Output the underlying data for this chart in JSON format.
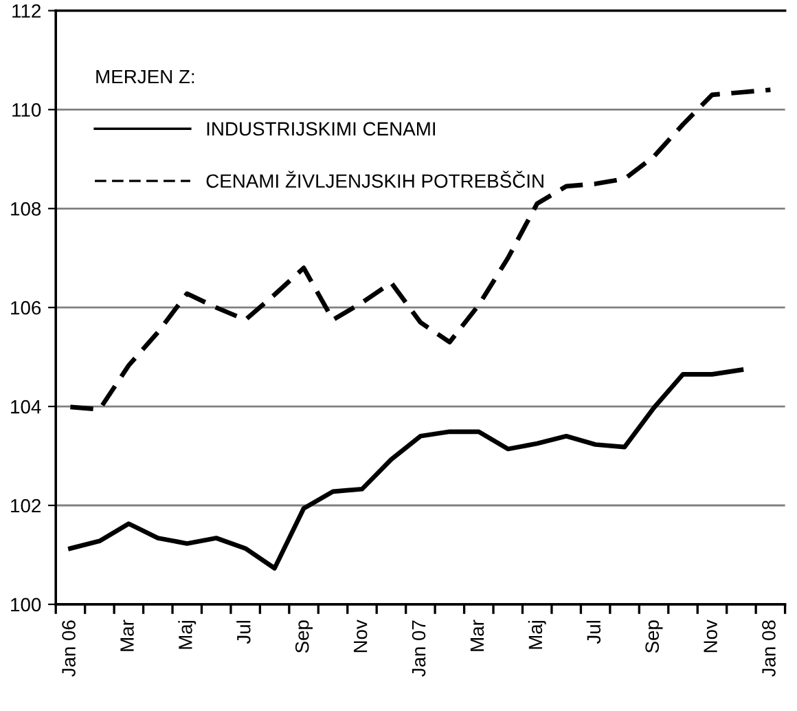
{
  "chart_data": {
    "type": "line",
    "categories": [
      "Jan 06",
      null,
      "Mar",
      null,
      "Maj",
      null,
      "Jul",
      null,
      "Sep",
      null,
      "Nov",
      null,
      "Jan 07",
      null,
      "Mar",
      null,
      "Maj",
      null,
      "Jul",
      null,
      "Sep",
      null,
      "Nov",
      null,
      "Jan 08"
    ],
    "legend_title": "MERJEN Z:",
    "legend": "top left",
    "grid": "y",
    "marker": "none",
    "ylim": [
      100,
      112
    ],
    "yticks": [
      100,
      102,
      104,
      106,
      108,
      110,
      112
    ],
    "series": [
      {
        "name": "INDUSTRIJSKIMI CENAMI",
        "color": "#000000",
        "line_style": "solid",
        "values": [
          101.13,
          101.28,
          101.63,
          101.34,
          101.23,
          101.34,
          101.13,
          100.73,
          101.94,
          102.28,
          102.33,
          102.93,
          103.4,
          103.49,
          103.49,
          103.14,
          103.25,
          103.4,
          103.23,
          103.18,
          103.97,
          104.65,
          104.65,
          104.74,
          null
        ]
      },
      {
        "name": "CENAMI ŽIVLJENJSKIH POTREBŠČIN",
        "color": "#000000",
        "line_style": "dashed",
        "values": [
          103.99,
          103.94,
          104.83,
          105.5,
          106.28,
          106.0,
          105.75,
          106.26,
          106.8,
          105.75,
          106.1,
          106.5,
          105.7,
          105.3,
          106.05,
          107.0,
          108.1,
          108.45,
          108.5,
          108.6,
          109.05,
          109.7,
          110.3,
          110.35,
          110.4
        ]
      }
    ]
  }
}
